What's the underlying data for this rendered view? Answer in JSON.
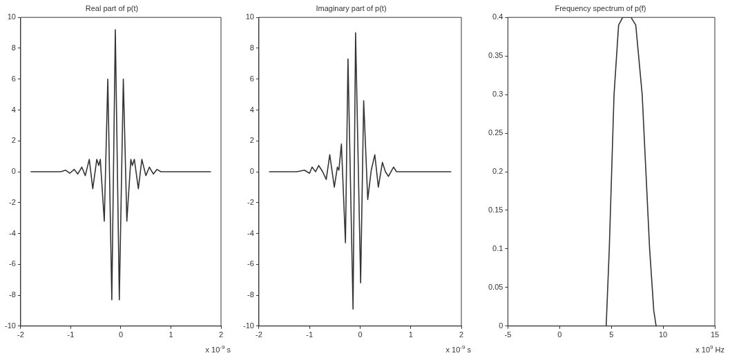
{
  "chart_data": [
    {
      "type": "line",
      "title": "Real part of p(t)",
      "xlabel": "x 10$^{-9}$ s",
      "xlim": [
        -2,
        2
      ],
      "xticks": [
        -2,
        -1,
        0,
        1,
        2
      ],
      "ylim": [
        -10,
        10
      ],
      "yticks": [
        -10,
        -8,
        -6,
        -4,
        -2,
        0,
        2,
        4,
        6,
        8,
        10
      ],
      "grid": false,
      "series": [
        {
          "color": "#333333",
          "x": [
            -1.8,
            -1.2,
            -1.1,
            -1.02,
            -0.93,
            -0.86,
            -0.78,
            -0.71,
            -0.63,
            -0.56,
            -0.48,
            -0.44,
            -0.41,
            -0.33,
            -0.26,
            -0.18,
            -0.11,
            -0.03,
            0.05,
            0.12,
            0.2,
            0.23,
            0.27,
            0.35,
            0.42,
            0.5,
            0.57,
            0.65,
            0.72,
            0.8,
            1.0,
            1.8
          ],
          "values": [
            0,
            0,
            0.1,
            -0.1,
            0.15,
            -0.15,
            0.3,
            -0.25,
            0.8,
            -1.1,
            0.8,
            0.4,
            0.8,
            -3.2,
            6,
            -8.3,
            9.2,
            -8.3,
            6,
            -3.2,
            0.8,
            0.4,
            0.8,
            -1.1,
            0.8,
            -0.25,
            0.3,
            -0.15,
            0.15,
            0,
            0,
            0
          ]
        }
      ]
    },
    {
      "type": "line",
      "title": "Imaginary part of p(t)",
      "xlabel": "x 10$^{-9}$ s",
      "xlim": [
        -2,
        2
      ],
      "xticks": [
        -2,
        -1,
        0,
        1,
        2
      ],
      "ylim": [
        -10,
        10
      ],
      "yticks": [
        -10,
        -8,
        -6,
        -4,
        -2,
        0,
        2,
        4,
        6,
        8,
        10
      ],
      "grid": false,
      "series": [
        {
          "color": "#333333",
          "x": [
            -1.8,
            -1.25,
            -1.1,
            -1.0,
            -0.95,
            -0.88,
            -0.82,
            -0.74,
            -0.67,
            -0.6,
            -0.51,
            -0.45,
            -0.42,
            -0.37,
            -0.29,
            -0.24,
            -0.14,
            -0.09,
            0.01,
            0.07,
            0.15,
            0.22,
            0.29,
            0.36,
            0.44,
            0.5,
            0.56,
            0.66,
            0.72,
            0.8,
            1.8
          ],
          "values": [
            0,
            0,
            0.1,
            -0.1,
            0.3,
            0,
            0.4,
            0,
            -0.5,
            1.1,
            -1,
            0.3,
            0.1,
            1.8,
            -4.6,
            7.3,
            -8.9,
            9,
            -7.2,
            4.6,
            -1.8,
            0.1,
            1.1,
            -1,
            0.6,
            0,
            -0.3,
            0.3,
            0,
            0,
            0
          ]
        }
      ]
    },
    {
      "type": "line",
      "title": "Frequency spectrum of p(f)",
      "xlabel": "x 10$^{9}$ Hz",
      "xlim": [
        -5,
        15
      ],
      "xticks": [
        -5,
        0,
        5,
        10,
        15
      ],
      "ylim": [
        0,
        0.4
      ],
      "yticks": [
        0,
        0.05,
        0.1,
        0.15,
        0.2,
        0.25,
        0.3,
        0.35,
        0.4
      ],
      "grid": false,
      "series": [
        {
          "color": "#333333",
          "x": [
            4.5,
            4.8,
            5.26,
            5.7,
            6.1,
            6.9,
            7.36,
            7.98,
            8.7,
            9.1,
            9.33
          ],
          "values": [
            0,
            0.1,
            0.3,
            0.39,
            0.4,
            0.4,
            0.39,
            0.3,
            0.1,
            0.02,
            0
          ]
        }
      ]
    }
  ]
}
